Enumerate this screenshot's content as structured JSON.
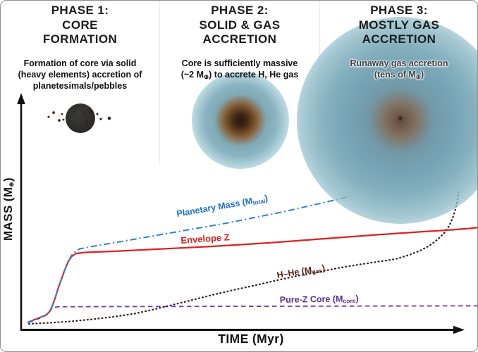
{
  "phases": [
    {
      "title1": "PHASE 1:",
      "title2": "CORE",
      "title3": "FORMATION",
      "desc1": "Formation of core via solid",
      "desc2": "(heavy elements) accretion of",
      "desc3": "planetesimals/pebbles"
    },
    {
      "title1": "PHASE 2:",
      "title2": "SOLID & GAS",
      "title3": "ACCRETION",
      "desc1": "Core is sufficiently massive",
      "desc2_pre": "(~2 M",
      "desc2_sub": "⊕",
      "desc2_post": ") to accrete H, He gas"
    },
    {
      "title1": "PHASE 3:",
      "title2": "MOSTLY GAS",
      "title3": "ACCRETION",
      "desc1": "Runaway gas accretion",
      "desc2_pre": "(tens of M",
      "desc2_sub": "⊕",
      "desc2_post": ")"
    }
  ],
  "chart": {
    "type": "line",
    "xlabel": "TIME (Myr)",
    "ylabel_pre": "MASS (M",
    "ylabel_sub": "⊕",
    "ylabel_post": ")",
    "axes_note": "schematic axes with arrowheads, no tick labels",
    "labels": {
      "planetary": {
        "pre": "Planetary Mass (M",
        "sub": "total",
        "post": ")",
        "color": "#1e6fc8"
      },
      "envelope": {
        "text": "Envelope Z",
        "color": "#e01d1d"
      },
      "hhe": {
        "pre": "H–He (M",
        "sub": "gas",
        "post": ")",
        "color": "#531d18"
      },
      "purez": {
        "pre": "Pure-Z Core (M",
        "sub": "core",
        "post": ")",
        "color": "#5b2d91"
      }
    },
    "series": [
      {
        "id": "pure-z-core",
        "name": "Pure-Z Core (Mcore)",
        "color": "#6a3fb0",
        "dash": "6.5 4.5",
        "width": 1.8,
        "cap": "butt",
        "points": [
          [
            40,
            457
          ],
          [
            50,
            453
          ],
          [
            58,
            450
          ],
          [
            64,
            447
          ],
          [
            68,
            443
          ],
          [
            71,
            439
          ],
          [
            74,
            436
          ],
          [
            80,
            434.8
          ],
          [
            120,
            434.6
          ],
          [
            200,
            434.4
          ],
          [
            300,
            434.2
          ],
          [
            400,
            434
          ],
          [
            500,
            433.8
          ],
          [
            600,
            433.6
          ],
          [
            678,
            433.4
          ]
        ]
      },
      {
        "id": "h-he-gas",
        "name": "H–He (Mgas)",
        "color": "#3a1d1d",
        "dash": "0.8 4.4",
        "width": 2.3,
        "cap": "round",
        "points": [
          [
            40,
            459
          ],
          [
            70,
            457.5
          ],
          [
            100,
            455.5
          ],
          [
            130,
            452.5
          ],
          [
            160,
            449
          ],
          [
            190,
            444.5
          ],
          [
            215,
            439
          ],
          [
            240,
            433
          ],
          [
            270,
            425.5
          ],
          [
            300,
            418
          ],
          [
            330,
            411
          ],
          [
            360,
            404.5
          ],
          [
            390,
            397.5
          ],
          [
            420,
            391
          ],
          [
            450,
            385.5
          ],
          [
            480,
            379.5
          ],
          [
            510,
            374.5
          ],
          [
            540,
            370
          ],
          [
            560,
            367
          ],
          [
            580,
            361
          ],
          [
            595,
            355
          ],
          [
            608,
            348
          ],
          [
            620,
            339
          ],
          [
            629,
            330
          ],
          [
            636,
            320
          ],
          [
            641,
            309
          ],
          [
            645,
            296
          ],
          [
            648,
            283
          ],
          [
            649.5,
            272
          ]
        ]
      },
      {
        "id": "envelope-z",
        "name": "Envelope Z",
        "color": "#e02020",
        "dash": "",
        "width": 2.2,
        "cap": "butt",
        "points": [
          [
            38,
            457
          ],
          [
            48,
            453
          ],
          [
            58,
            449
          ],
          [
            65,
            446
          ],
          [
            69,
            442
          ],
          [
            73,
            434
          ],
          [
            77,
            423
          ],
          [
            81,
            410
          ],
          [
            86,
            396
          ],
          [
            91,
            382
          ],
          [
            96,
            370
          ],
          [
            101,
            363
          ],
          [
            107,
            359
          ],
          [
            120,
            357.5
          ],
          [
            160,
            356
          ],
          [
            220,
            353
          ],
          [
            300,
            349
          ],
          [
            380,
            344
          ],
          [
            460,
            338
          ],
          [
            540,
            332
          ],
          [
            600,
            328
          ],
          [
            640,
            325.5
          ],
          [
            652,
            324.5
          ],
          [
            665,
            323.5
          ],
          [
            678,
            322
          ]
        ]
      },
      {
        "id": "planetary-mass",
        "name": "Planetary Mass (Mtotal)",
        "color": "#2e7fd6",
        "dash": "9 4 2 4",
        "width": 2,
        "cap": "butt",
        "points": [
          [
            38,
            457
          ],
          [
            48,
            453
          ],
          [
            58,
            449
          ],
          [
            65,
            446
          ],
          [
            69,
            442
          ],
          [
            73,
            434
          ],
          [
            77,
            423
          ],
          [
            81,
            410
          ],
          [
            86,
            396
          ],
          [
            91,
            382
          ],
          [
            96,
            370
          ],
          [
            101,
            361
          ],
          [
            106,
            356
          ],
          [
            112,
            352.5
          ],
          [
            130,
            349
          ],
          [
            160,
            344
          ],
          [
            200,
            337
          ],
          [
            240,
            330
          ],
          [
            280,
            323
          ],
          [
            320,
            316
          ],
          [
            360,
            308
          ],
          [
            400,
            300
          ],
          [
            440,
            291
          ],
          [
            470,
            284
          ],
          [
            495,
            278
          ]
        ]
      }
    ]
  }
}
